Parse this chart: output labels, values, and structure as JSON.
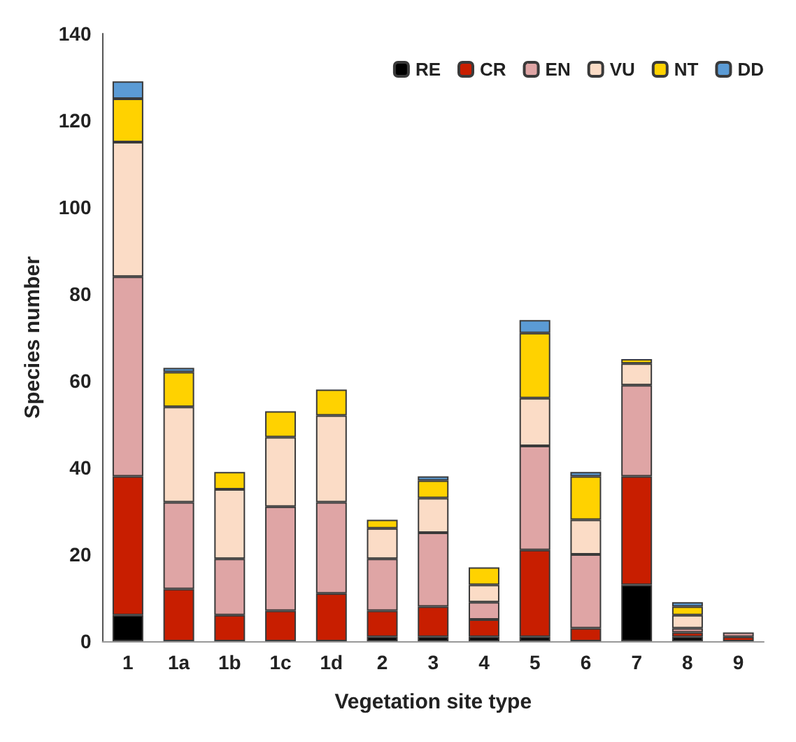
{
  "chart_data": {
    "type": "bar",
    "stacked": true,
    "xlabel": "Vegetation site type",
    "ylabel": "Species number",
    "categories": [
      "1",
      "1a",
      "1b",
      "1c",
      "1d",
      "2",
      "3",
      "4",
      "5",
      "6",
      "7",
      "8",
      "9"
    ],
    "series": [
      {
        "name": "RE",
        "color": "#000000",
        "values": [
          6,
          0,
          0,
          0,
          0,
          1,
          1,
          1,
          1,
          0,
          13,
          1,
          0
        ]
      },
      {
        "name": "CR",
        "color": "#c81e00",
        "values": [
          32,
          12,
          6,
          7,
          11,
          6,
          7,
          4,
          20,
          3,
          25,
          1,
          1
        ]
      },
      {
        "name": "EN",
        "color": "#dfa5a5",
        "values": [
          46,
          20,
          13,
          24,
          21,
          12,
          17,
          4,
          24,
          17,
          21,
          1,
          1
        ]
      },
      {
        "name": "VU",
        "color": "#fbdcc6",
        "values": [
          31,
          22,
          16,
          16,
          20,
          7,
          8,
          4,
          11,
          8,
          5,
          3,
          0
        ]
      },
      {
        "name": "NT",
        "color": "#ffd200",
        "values": [
          10,
          8,
          4,
          6,
          6,
          2,
          4,
          4,
          15,
          10,
          1,
          2,
          0
        ]
      },
      {
        "name": "DD",
        "color": "#5b9bd5",
        "values": [
          4,
          1,
          0,
          0,
          0,
          0,
          1,
          0,
          3,
          1,
          0,
          1,
          0
        ]
      }
    ],
    "ylim": [
      0,
      140
    ],
    "yticks": [
      0,
      20,
      40,
      60,
      80,
      100,
      120,
      140
    ],
    "grid": false,
    "legend": "top right"
  }
}
